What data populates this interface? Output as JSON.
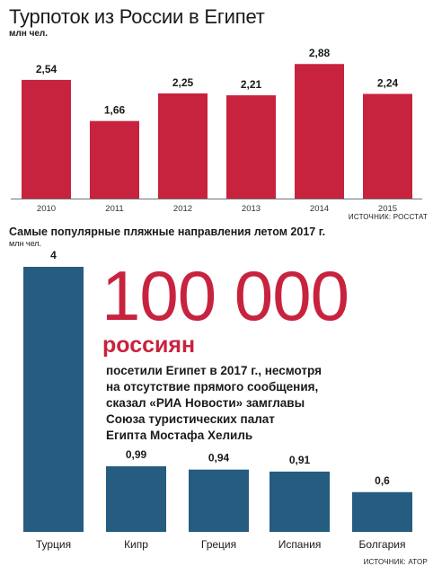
{
  "colors": {
    "chart1": "#c8233e",
    "chart2": "#255c80",
    "highlight": "#c8233e"
  },
  "header": {
    "title": "Турпоток из России в Египет",
    "unit": "млн чел."
  },
  "source1": "ИСТОЧНИК: РОССТАТ",
  "section2": {
    "subtitle": "Самые популярные пляжные направления летом 2017 г.",
    "unit": "млн чел."
  },
  "callout": {
    "number": "100 000",
    "word": "россиян",
    "lines": [
      "посетили Египет в 2017 г., несмотря",
      "на отсутствие прямого сообщения,",
      "сказал «РИА Новости» замглавы",
      "Союза туристических палат",
      "Египта Мостафа Хелиль"
    ]
  },
  "source2": "ИСТОЧНИК: АТОР",
  "chart_data": [
    {
      "type": "bar",
      "title": "Турпоток из России в Египет",
      "ylabel": "млн чел.",
      "categories": [
        "2010",
        "2011",
        "2012",
        "2013",
        "2014",
        "2015"
      ],
      "values": [
        2.54,
        1.66,
        2.25,
        2.21,
        2.88,
        2.24
      ],
      "labels": [
        "2,54",
        "1,66",
        "2,25",
        "2,21",
        "2,88",
        "2,24"
      ],
      "ylim": [
        0,
        3.0
      ],
      "grid": false,
      "color": "#c8233e"
    },
    {
      "type": "bar",
      "title": "Самые популярные пляжные направления летом 2017 г.",
      "ylabel": "млн чел.",
      "categories": [
        "Турция",
        "Кипр",
        "Греция",
        "Испания",
        "Болгария"
      ],
      "values": [
        4,
        0.99,
        0.94,
        0.91,
        0.6
      ],
      "labels": [
        "4",
        "0,99",
        "0,94",
        "0,91",
        "0,6"
      ],
      "ylim": [
        0,
        4
      ],
      "grid": false,
      "color": "#255c80"
    }
  ]
}
